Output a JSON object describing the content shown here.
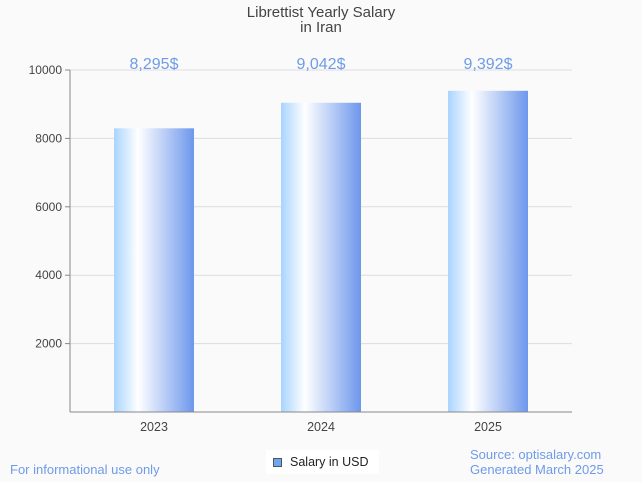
{
  "chart_data": {
    "type": "bar",
    "title": "Librettist Yearly Salary",
    "subtitle": "in Iran",
    "categories": [
      "2023",
      "2024",
      "2025"
    ],
    "values": [
      8295,
      9042,
      9392
    ],
    "data_labels": [
      "8,295$",
      "9,042$",
      "9,392$"
    ],
    "series": [
      {
        "name": "Salary in USD",
        "values": [
          8295,
          9042,
          9392
        ]
      }
    ],
    "yticks": [
      "2000",
      "4000",
      "6000",
      "8000",
      "10000"
    ],
    "ylim": [
      0,
      10000
    ],
    "xlabel": "",
    "ylabel": "",
    "grid": true,
    "legend_position": "bottom-center",
    "colors": {
      "bar_light": "#a9d4ff",
      "bar_dark": "#6d97ec",
      "label": "#6f9be8"
    }
  },
  "footer": {
    "disclaimer": "For informational use only",
    "source": "Source: optisalary.com",
    "generated": "Generated March 2025"
  }
}
